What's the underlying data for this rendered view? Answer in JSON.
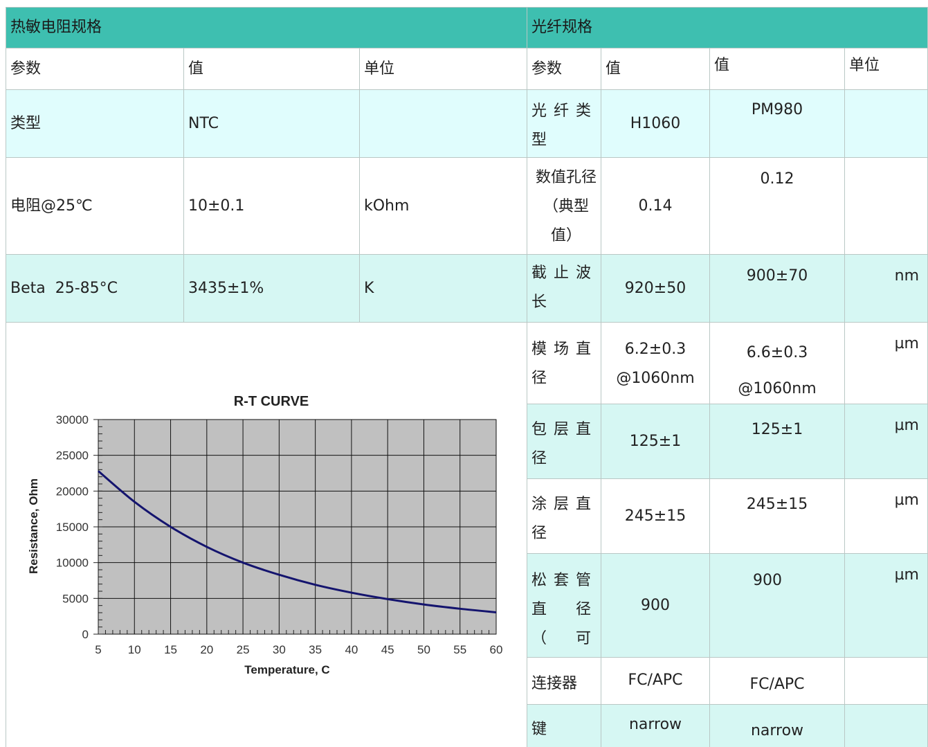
{
  "left": {
    "title": "热敏电阻规格",
    "headers": [
      "参数",
      "值",
      "单位"
    ],
    "rows": [
      [
        "类型",
        "NTC",
        ""
      ],
      [
        "电阻@25℃",
        "10±0.1",
        "kOhm"
      ],
      [
        "Beta  25-85°C",
        "3435±1%",
        "K"
      ]
    ]
  },
  "right": {
    "title": "光纤规格",
    "headers": [
      "参数",
      "值",
      "值",
      "单位"
    ],
    "rows": [
      [
        "光纤类型",
        "H1060",
        "PM980",
        ""
      ],
      [
        "数值孔径（典型值）",
        "0.14",
        "0.12",
        ""
      ],
      [
        "截止波长",
        "920±50",
        "900±70",
        "nm"
      ],
      [
        "模场直径",
        "6.2±0.3\n@1060nm",
        "6.6±0.3\n@1060nm",
        "µm"
      ],
      [
        "包层直径",
        "125±1",
        "125±1",
        "µm"
      ],
      [
        "涂层直径",
        "245±15",
        "245±15",
        "µm"
      ],
      [
        "松套管直径（可选）",
        "900",
        "900",
        "µm"
      ],
      [
        "连接器",
        "FC/APC",
        "FC/APC",
        ""
      ],
      [
        "键",
        "narrow",
        "narrow",
        ""
      ]
    ]
  },
  "chart_data": {
    "type": "line",
    "title": "R-T CURVE",
    "xlabel": "Temperature,  C",
    "ylabel": "Resistance,  Ohm",
    "xlim": [
      5,
      60
    ],
    "ylim": [
      0,
      30000
    ],
    "x_ticks": [
      5,
      10,
      15,
      20,
      25,
      30,
      35,
      40,
      45,
      50,
      55,
      60
    ],
    "y_ticks": [
      0,
      5000,
      10000,
      15000,
      20000,
      25000,
      30000
    ],
    "grid": true,
    "line_color": "#14146e",
    "plot_bg": "#c0c0c0",
    "series": [
      {
        "x": [
          5,
          10,
          15,
          20,
          25,
          30,
          35,
          40,
          45,
          50,
          55,
          60
        ],
        "values": [
          22800,
          18500,
          15000,
          12200,
          10000,
          8300,
          6900,
          5800,
          4900,
          4150,
          3550,
          3050
        ]
      }
    ]
  }
}
